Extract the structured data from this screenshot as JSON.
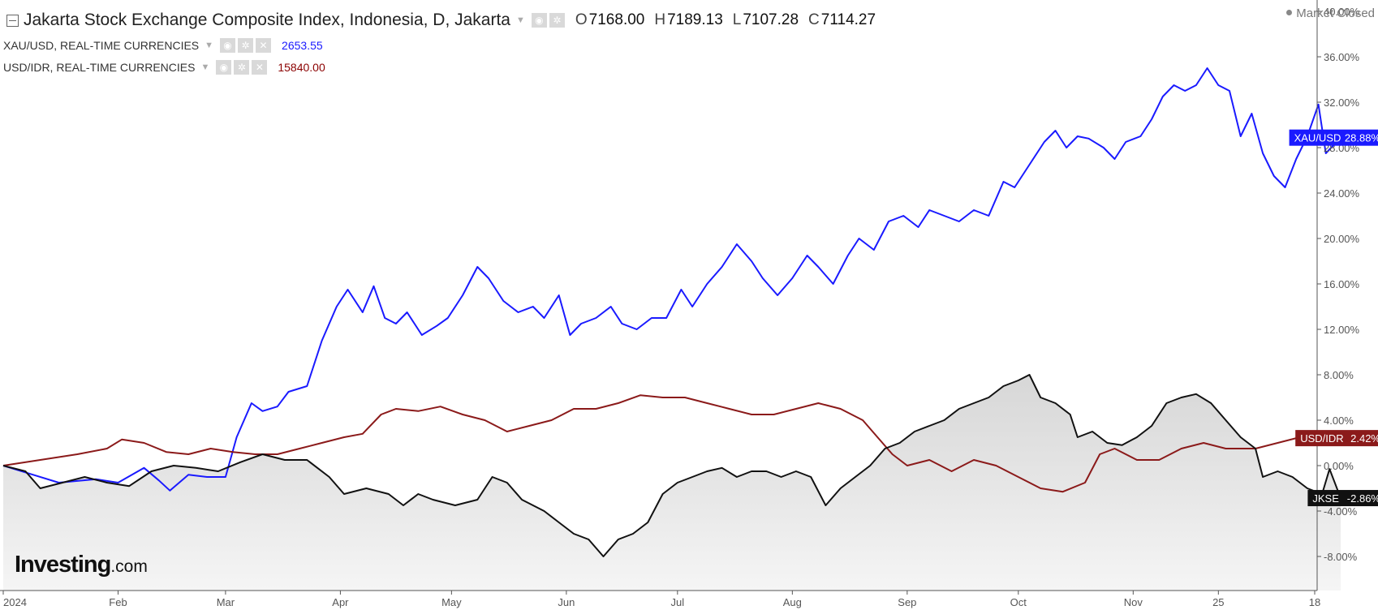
{
  "header": {
    "title": "Jakarta Stock Exchange Composite Index, Indonesia, D, Jakarta",
    "ohlc": [
      {
        "k": "O",
        "v": "7168.00"
      },
      {
        "k": "H",
        "v": "7189.13"
      },
      {
        "k": "L",
        "v": "7107.28"
      },
      {
        "k": "C",
        "v": "7114.27"
      }
    ],
    "market_status": "Market Closed",
    "overlays": [
      {
        "label": "XAU/USD, REAL-TIME CURRENCIES",
        "value": "2653.55"
      },
      {
        "label": "USD/IDR, REAL-TIME CURRENCIES",
        "value": "15840.00"
      }
    ]
  },
  "logo": {
    "brand": "Investing",
    "domain": ".com"
  },
  "colors": {
    "xau": "#1a1aff",
    "idr": "#8b1a1a",
    "jkse": "#111111",
    "area": "#d0d0d0"
  },
  "chart_data": {
    "type": "line",
    "ylim": [
      -11,
      41
    ],
    "y_ticks": [
      "40.00%",
      "36.00%",
      "32.00%",
      "28.00%",
      "24.00%",
      "20.00%",
      "16.00%",
      "12.00%",
      "8.00%",
      "4.00%",
      "0.00%",
      "-4.00%",
      "-8.00%"
    ],
    "y_tick_values": [
      40,
      36,
      32,
      28,
      24,
      20,
      16,
      12,
      8,
      4,
      0,
      -4,
      -8
    ],
    "x_ticks": [
      "2024",
      "Feb",
      "Mar",
      "Apr",
      "May",
      "Jun",
      "Jul",
      "Aug",
      "Sep",
      "Oct",
      "Nov",
      "25",
      "18"
    ],
    "x_tick_days": [
      0,
      31,
      60,
      91,
      121,
      152,
      182,
      213,
      244,
      274,
      305,
      328,
      354
    ],
    "grid": false,
    "series": [
      {
        "name": "XAU/USD",
        "end_label": "28.88%",
        "points": [
          [
            0,
            0.0
          ],
          [
            8,
            -0.8
          ],
          [
            15,
            -1.5
          ],
          [
            25,
            -1.2
          ],
          [
            31,
            -1.5
          ],
          [
            38,
            -0.2
          ],
          [
            42,
            -1.3
          ],
          [
            45,
            -2.2
          ],
          [
            50,
            -0.8
          ],
          [
            55,
            -1.0
          ],
          [
            60,
            -1.0
          ],
          [
            63,
            2.5
          ],
          [
            67,
            5.5
          ],
          [
            70,
            4.8
          ],
          [
            74,
            5.2
          ],
          [
            77,
            6.5
          ],
          [
            82,
            7.0
          ],
          [
            86,
            11.0
          ],
          [
            90,
            14.0
          ],
          [
            93,
            15.5
          ],
          [
            97,
            13.5
          ],
          [
            100,
            15.8
          ],
          [
            103,
            13.0
          ],
          [
            106,
            12.5
          ],
          [
            109,
            13.5
          ],
          [
            113,
            11.5
          ],
          [
            117,
            12.3
          ],
          [
            120,
            13.0
          ],
          [
            124,
            15.0
          ],
          [
            128,
            17.5
          ],
          [
            131,
            16.5
          ],
          [
            135,
            14.5
          ],
          [
            139,
            13.5
          ],
          [
            143,
            14.0
          ],
          [
            146,
            13.0
          ],
          [
            150,
            15.0
          ],
          [
            153,
            11.5
          ],
          [
            156,
            12.5
          ],
          [
            160,
            13.0
          ],
          [
            164,
            14.0
          ],
          [
            167,
            12.5
          ],
          [
            171,
            12.0
          ],
          [
            175,
            13.0
          ],
          [
            179,
            13.0
          ],
          [
            183,
            15.5
          ],
          [
            186,
            14.0
          ],
          [
            190,
            16.0
          ],
          [
            194,
            17.5
          ],
          [
            198,
            19.5
          ],
          [
            202,
            18.0
          ],
          [
            205,
            16.5
          ],
          [
            209,
            15.0
          ],
          [
            213,
            16.5
          ],
          [
            217,
            18.5
          ],
          [
            220,
            17.5
          ],
          [
            224,
            16.0
          ],
          [
            228,
            18.5
          ],
          [
            231,
            20.0
          ],
          [
            235,
            19.0
          ],
          [
            239,
            21.5
          ],
          [
            243,
            22.0
          ],
          [
            247,
            21.0
          ],
          [
            250,
            22.5
          ],
          [
            254,
            22.0
          ],
          [
            258,
            21.5
          ],
          [
            262,
            22.5
          ],
          [
            266,
            22.0
          ],
          [
            270,
            25.0
          ],
          [
            273,
            24.5
          ],
          [
            277,
            26.5
          ],
          [
            281,
            28.5
          ],
          [
            284,
            29.5
          ],
          [
            287,
            28.0
          ],
          [
            290,
            29.0
          ],
          [
            293,
            28.8
          ],
          [
            297,
            28.0
          ],
          [
            300,
            27.0
          ],
          [
            303,
            28.5
          ],
          [
            307,
            29.0
          ],
          [
            310,
            30.5
          ],
          [
            313,
            32.5
          ],
          [
            316,
            33.5
          ],
          [
            319,
            33.0
          ],
          [
            322,
            33.5
          ],
          [
            325,
            35.0
          ],
          [
            328,
            33.5
          ],
          [
            331,
            33.0
          ],
          [
            334,
            29.0
          ],
          [
            337,
            31.0
          ],
          [
            340,
            27.5
          ],
          [
            343,
            25.5
          ],
          [
            346,
            24.5
          ],
          [
            349,
            27.0
          ],
          [
            352,
            29.0
          ],
          [
            355,
            31.8
          ],
          [
            357,
            27.5
          ],
          [
            361,
            28.88
          ]
        ]
      },
      {
        "name": "USD/IDR",
        "end_label": "2.42%",
        "points": [
          [
            0,
            0.0
          ],
          [
            10,
            0.5
          ],
          [
            20,
            1.0
          ],
          [
            28,
            1.5
          ],
          [
            32,
            2.3
          ],
          [
            38,
            2.0
          ],
          [
            44,
            1.2
          ],
          [
            50,
            1.0
          ],
          [
            56,
            1.5
          ],
          [
            62,
            1.2
          ],
          [
            68,
            1.0
          ],
          [
            74,
            1.0
          ],
          [
            80,
            1.5
          ],
          [
            86,
            2.0
          ],
          [
            92,
            2.5
          ],
          [
            97,
            2.8
          ],
          [
            102,
            4.5
          ],
          [
            106,
            5.0
          ],
          [
            112,
            4.8
          ],
          [
            118,
            5.2
          ],
          [
            124,
            4.5
          ],
          [
            130,
            4.0
          ],
          [
            136,
            3.0
          ],
          [
            142,
            3.5
          ],
          [
            148,
            4.0
          ],
          [
            154,
            5.0
          ],
          [
            160,
            5.0
          ],
          [
            166,
            5.5
          ],
          [
            172,
            6.2
          ],
          [
            178,
            6.0
          ],
          [
            184,
            6.0
          ],
          [
            190,
            5.5
          ],
          [
            196,
            5.0
          ],
          [
            202,
            4.5
          ],
          [
            208,
            4.5
          ],
          [
            214,
            5.0
          ],
          [
            220,
            5.5
          ],
          [
            226,
            5.0
          ],
          [
            232,
            4.0
          ],
          [
            236,
            2.5
          ],
          [
            240,
            1.0
          ],
          [
            244,
            0.0
          ],
          [
            250,
            0.5
          ],
          [
            256,
            -0.5
          ],
          [
            262,
            0.5
          ],
          [
            268,
            0.0
          ],
          [
            274,
            -1.0
          ],
          [
            280,
            -2.0
          ],
          [
            286,
            -2.3
          ],
          [
            292,
            -1.5
          ],
          [
            296,
            1.0
          ],
          [
            300,
            1.5
          ],
          [
            306,
            0.5
          ],
          [
            312,
            0.5
          ],
          [
            318,
            1.5
          ],
          [
            324,
            2.0
          ],
          [
            330,
            1.5
          ],
          [
            334,
            1.5
          ],
          [
            338,
            1.5
          ],
          [
            344,
            2.0
          ],
          [
            350,
            2.5
          ],
          [
            354,
            2.5
          ],
          [
            358,
            2.6
          ],
          [
            361,
            2.42
          ]
        ]
      },
      {
        "name": "JKSE",
        "end_label": "-2.86%",
        "points": [
          [
            0,
            0.0
          ],
          [
            6,
            -0.5
          ],
          [
            10,
            -2.0
          ],
          [
            16,
            -1.5
          ],
          [
            22,
            -1.0
          ],
          [
            28,
            -1.5
          ],
          [
            34,
            -1.8
          ],
          [
            40,
            -0.5
          ],
          [
            46,
            0.0
          ],
          [
            52,
            -0.2
          ],
          [
            58,
            -0.5
          ],
          [
            64,
            0.3
          ],
          [
            70,
            1.0
          ],
          [
            76,
            0.5
          ],
          [
            82,
            0.5
          ],
          [
            88,
            -1.0
          ],
          [
            92,
            -2.5
          ],
          [
            98,
            -2.0
          ],
          [
            104,
            -2.5
          ],
          [
            108,
            -3.5
          ],
          [
            112,
            -2.5
          ],
          [
            116,
            -3.0
          ],
          [
            122,
            -3.5
          ],
          [
            128,
            -3.0
          ],
          [
            132,
            -1.0
          ],
          [
            136,
            -1.5
          ],
          [
            140,
            -3.0
          ],
          [
            146,
            -4.0
          ],
          [
            150,
            -5.0
          ],
          [
            154,
            -6.0
          ],
          [
            158,
            -6.5
          ],
          [
            162,
            -8.0
          ],
          [
            166,
            -6.5
          ],
          [
            170,
            -6.0
          ],
          [
            174,
            -5.0
          ],
          [
            178,
            -2.5
          ],
          [
            182,
            -1.5
          ],
          [
            186,
            -1.0
          ],
          [
            190,
            -0.5
          ],
          [
            194,
            -0.2
          ],
          [
            198,
            -1.0
          ],
          [
            202,
            -0.5
          ],
          [
            206,
            -0.5
          ],
          [
            210,
            -1.0
          ],
          [
            214,
            -0.5
          ],
          [
            218,
            -1.0
          ],
          [
            222,
            -3.5
          ],
          [
            226,
            -2.0
          ],
          [
            230,
            -1.0
          ],
          [
            234,
            0.0
          ],
          [
            238,
            1.5
          ],
          [
            242,
            2.0
          ],
          [
            246,
            3.0
          ],
          [
            250,
            3.5
          ],
          [
            254,
            4.0
          ],
          [
            258,
            5.0
          ],
          [
            262,
            5.5
          ],
          [
            266,
            6.0
          ],
          [
            270,
            7.0
          ],
          [
            274,
            7.5
          ],
          [
            277,
            8.0
          ],
          [
            280,
            6.0
          ],
          [
            284,
            5.5
          ],
          [
            288,
            4.5
          ],
          [
            290,
            2.5
          ],
          [
            294,
            3.0
          ],
          [
            298,
            2.0
          ],
          [
            302,
            1.8
          ],
          [
            306,
            2.5
          ],
          [
            310,
            3.5
          ],
          [
            314,
            5.5
          ],
          [
            318,
            6.0
          ],
          [
            322,
            6.3
          ],
          [
            326,
            5.5
          ],
          [
            330,
            4.0
          ],
          [
            334,
            2.5
          ],
          [
            338,
            1.5
          ],
          [
            340,
            -1.0
          ],
          [
            344,
            -0.5
          ],
          [
            348,
            -1.0
          ],
          [
            352,
            -2.0
          ],
          [
            356,
            -2.5
          ],
          [
            358,
            -0.3
          ],
          [
            361,
            -2.86
          ]
        ]
      }
    ]
  }
}
